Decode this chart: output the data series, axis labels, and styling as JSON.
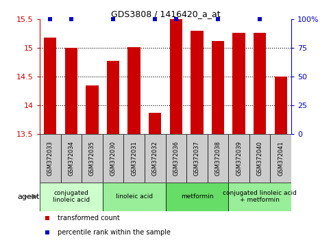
{
  "title": "GDS3808 / 1416420_a_at",
  "categories": [
    "GSM372033",
    "GSM372034",
    "GSM372035",
    "GSM372030",
    "GSM372031",
    "GSM372032",
    "GSM372036",
    "GSM372037",
    "GSM372038",
    "GSM372039",
    "GSM372040",
    "GSM372041"
  ],
  "bar_values": [
    15.18,
    15.0,
    14.35,
    14.77,
    15.02,
    13.87,
    15.5,
    15.3,
    15.12,
    15.27,
    15.27,
    14.5
  ],
  "percentile_show": [
    true,
    true,
    false,
    true,
    false,
    true,
    true,
    false,
    true,
    false,
    true,
    false
  ],
  "bar_color": "#cc0000",
  "percentile_color": "#0000cc",
  "ylim_left": [
    13.5,
    15.5
  ],
  "ylim_right": [
    0,
    100
  ],
  "yticks_left": [
    13.5,
    14.0,
    14.5,
    15.0,
    15.5
  ],
  "ytick_labels_left": [
    "13.5",
    "14",
    "14.5",
    "15",
    "15.5"
  ],
  "yticks_right": [
    0,
    25,
    50,
    75,
    100
  ],
  "ytick_labels_right": [
    "0",
    "25",
    "50",
    "75",
    "100%"
  ],
  "groups": [
    {
      "label": "conjugated\nlinoleic acid",
      "start": 0,
      "end": 3,
      "color": "#ccffcc"
    },
    {
      "label": "linoleic acid",
      "start": 3,
      "end": 6,
      "color": "#99ee99"
    },
    {
      "label": "metformin",
      "start": 6,
      "end": 9,
      "color": "#66dd66"
    },
    {
      "label": "conjugated linoleic acid\n+ metformin",
      "start": 9,
      "end": 12,
      "color": "#99ee99"
    }
  ],
  "left_tick_color": "#cc0000",
  "right_tick_color": "#0000cc",
  "background_color": "#ffffff",
  "legend_items": [
    {
      "label": "transformed count",
      "color": "#cc0000"
    },
    {
      "label": "percentile rank within the sample",
      "color": "#0000cc"
    }
  ],
  "agent_label": "agent",
  "gray_color": "#cccccc",
  "grid_color": "#555555",
  "gridlines": [
    14.0,
    14.5,
    15.0
  ]
}
